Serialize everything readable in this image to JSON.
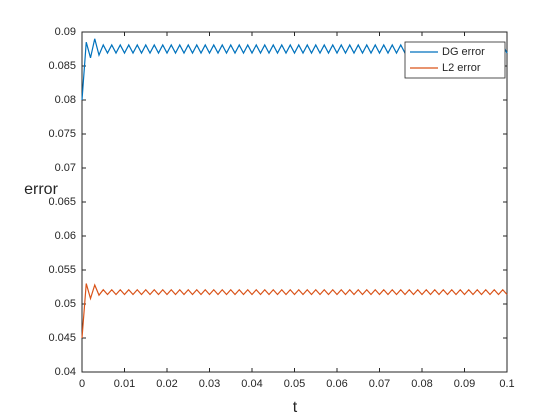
{
  "chart_data": {
    "type": "line",
    "x_label": "t",
    "y_label": "error",
    "x": [
      0,
      0.001,
      0.002,
      0.003,
      0.004,
      0.005,
      0.006,
      0.007,
      0.008,
      0.009,
      0.01,
      0.011,
      0.012,
      0.013,
      0.014,
      0.015,
      0.016,
      0.017,
      0.018,
      0.019,
      0.02,
      0.021,
      0.022,
      0.023,
      0.024,
      0.025,
      0.026,
      0.027,
      0.028,
      0.029,
      0.03,
      0.031,
      0.032,
      0.033,
      0.034,
      0.035,
      0.036,
      0.037,
      0.038,
      0.039,
      0.04,
      0.041,
      0.042,
      0.043,
      0.044,
      0.045,
      0.046,
      0.047,
      0.048,
      0.049,
      0.05,
      0.051,
      0.052,
      0.053,
      0.054,
      0.055,
      0.056,
      0.057,
      0.058,
      0.059,
      0.06,
      0.061,
      0.062,
      0.063,
      0.064,
      0.065,
      0.066,
      0.067,
      0.068,
      0.069,
      0.07,
      0.071,
      0.072,
      0.073,
      0.074,
      0.075,
      0.076,
      0.077,
      0.078,
      0.079,
      0.08,
      0.081,
      0.082,
      0.083,
      0.084,
      0.085,
      0.086,
      0.087,
      0.088,
      0.089,
      0.09,
      0.091,
      0.092,
      0.093,
      0.094,
      0.095,
      0.096,
      0.097,
      0.098,
      0.099,
      0.1
    ],
    "series": [
      {
        "name": "DG error",
        "color": "#0072bd",
        "values": [
          0.08,
          0.0885,
          0.0862,
          0.089,
          0.0866,
          0.0881,
          0.0869,
          0.0881,
          0.0869,
          0.0881,
          0.0869,
          0.0881,
          0.0869,
          0.0881,
          0.0869,
          0.0881,
          0.0869,
          0.0881,
          0.0869,
          0.0881,
          0.0869,
          0.0881,
          0.0869,
          0.0881,
          0.0869,
          0.0881,
          0.0869,
          0.0881,
          0.0869,
          0.0881,
          0.0869,
          0.0881,
          0.0869,
          0.0881,
          0.0869,
          0.0881,
          0.0869,
          0.0881,
          0.0869,
          0.0881,
          0.0869,
          0.0881,
          0.0869,
          0.0881,
          0.0869,
          0.0881,
          0.0869,
          0.0881,
          0.0869,
          0.0881,
          0.0869,
          0.0881,
          0.0869,
          0.0881,
          0.0869,
          0.0881,
          0.0869,
          0.0881,
          0.0869,
          0.0881,
          0.0869,
          0.0881,
          0.0869,
          0.0881,
          0.0869,
          0.0881,
          0.0869,
          0.0881,
          0.0869,
          0.0881,
          0.0869,
          0.0881,
          0.0869,
          0.0881,
          0.0869,
          0.0881,
          0.0869,
          0.0881,
          0.0869,
          0.0881,
          0.0869,
          0.0881,
          0.0869,
          0.0881,
          0.0869,
          0.0881,
          0.0869,
          0.0881,
          0.0869,
          0.0881,
          0.0869,
          0.0881,
          0.0869,
          0.0881,
          0.0869,
          0.0881,
          0.0869,
          0.0881,
          0.0869,
          0.0881,
          0.0869
        ]
      },
      {
        "name": "L2 error",
        "color": "#d95319",
        "values": [
          0.045,
          0.053,
          0.0508,
          0.0528,
          0.0513,
          0.0521,
          0.0514,
          0.0521,
          0.0514,
          0.0521,
          0.0514,
          0.0521,
          0.0514,
          0.0521,
          0.0514,
          0.0521,
          0.0514,
          0.0521,
          0.0514,
          0.0521,
          0.0514,
          0.0521,
          0.0514,
          0.0521,
          0.0514,
          0.0521,
          0.0514,
          0.0521,
          0.0514,
          0.0521,
          0.0514,
          0.0521,
          0.0514,
          0.0521,
          0.0514,
          0.0521,
          0.0514,
          0.0521,
          0.0514,
          0.0521,
          0.0514,
          0.0521,
          0.0514,
          0.0521,
          0.0514,
          0.0521,
          0.0514,
          0.0521,
          0.0514,
          0.0521,
          0.0514,
          0.0521,
          0.0514,
          0.0521,
          0.0514,
          0.0521,
          0.0514,
          0.0521,
          0.0514,
          0.0521,
          0.0514,
          0.0521,
          0.0514,
          0.0521,
          0.0514,
          0.0521,
          0.0514,
          0.0521,
          0.0514,
          0.0521,
          0.0514,
          0.0521,
          0.0514,
          0.0521,
          0.0514,
          0.0521,
          0.0514,
          0.0521,
          0.0514,
          0.0521,
          0.0514,
          0.0521,
          0.0514,
          0.0521,
          0.0514,
          0.0521,
          0.0514,
          0.0521,
          0.0514,
          0.0521,
          0.0514,
          0.0521,
          0.0514,
          0.0521,
          0.0514,
          0.0521,
          0.0514,
          0.0521,
          0.0514,
          0.0521,
          0.0514
        ]
      }
    ],
    "xlim": [
      0,
      0.1
    ],
    "xticks": [
      0,
      0.01,
      0.02,
      0.03,
      0.04,
      0.05,
      0.06,
      0.07,
      0.08,
      0.09,
      0.1
    ],
    "ylim": [
      0.04,
      0.09
    ],
    "yticks": [
      0.04,
      0.045,
      0.05,
      0.055,
      0.06,
      0.065,
      0.07,
      0.075,
      0.08,
      0.085,
      0.09
    ],
    "grid": false,
    "legend": "top-right"
  }
}
